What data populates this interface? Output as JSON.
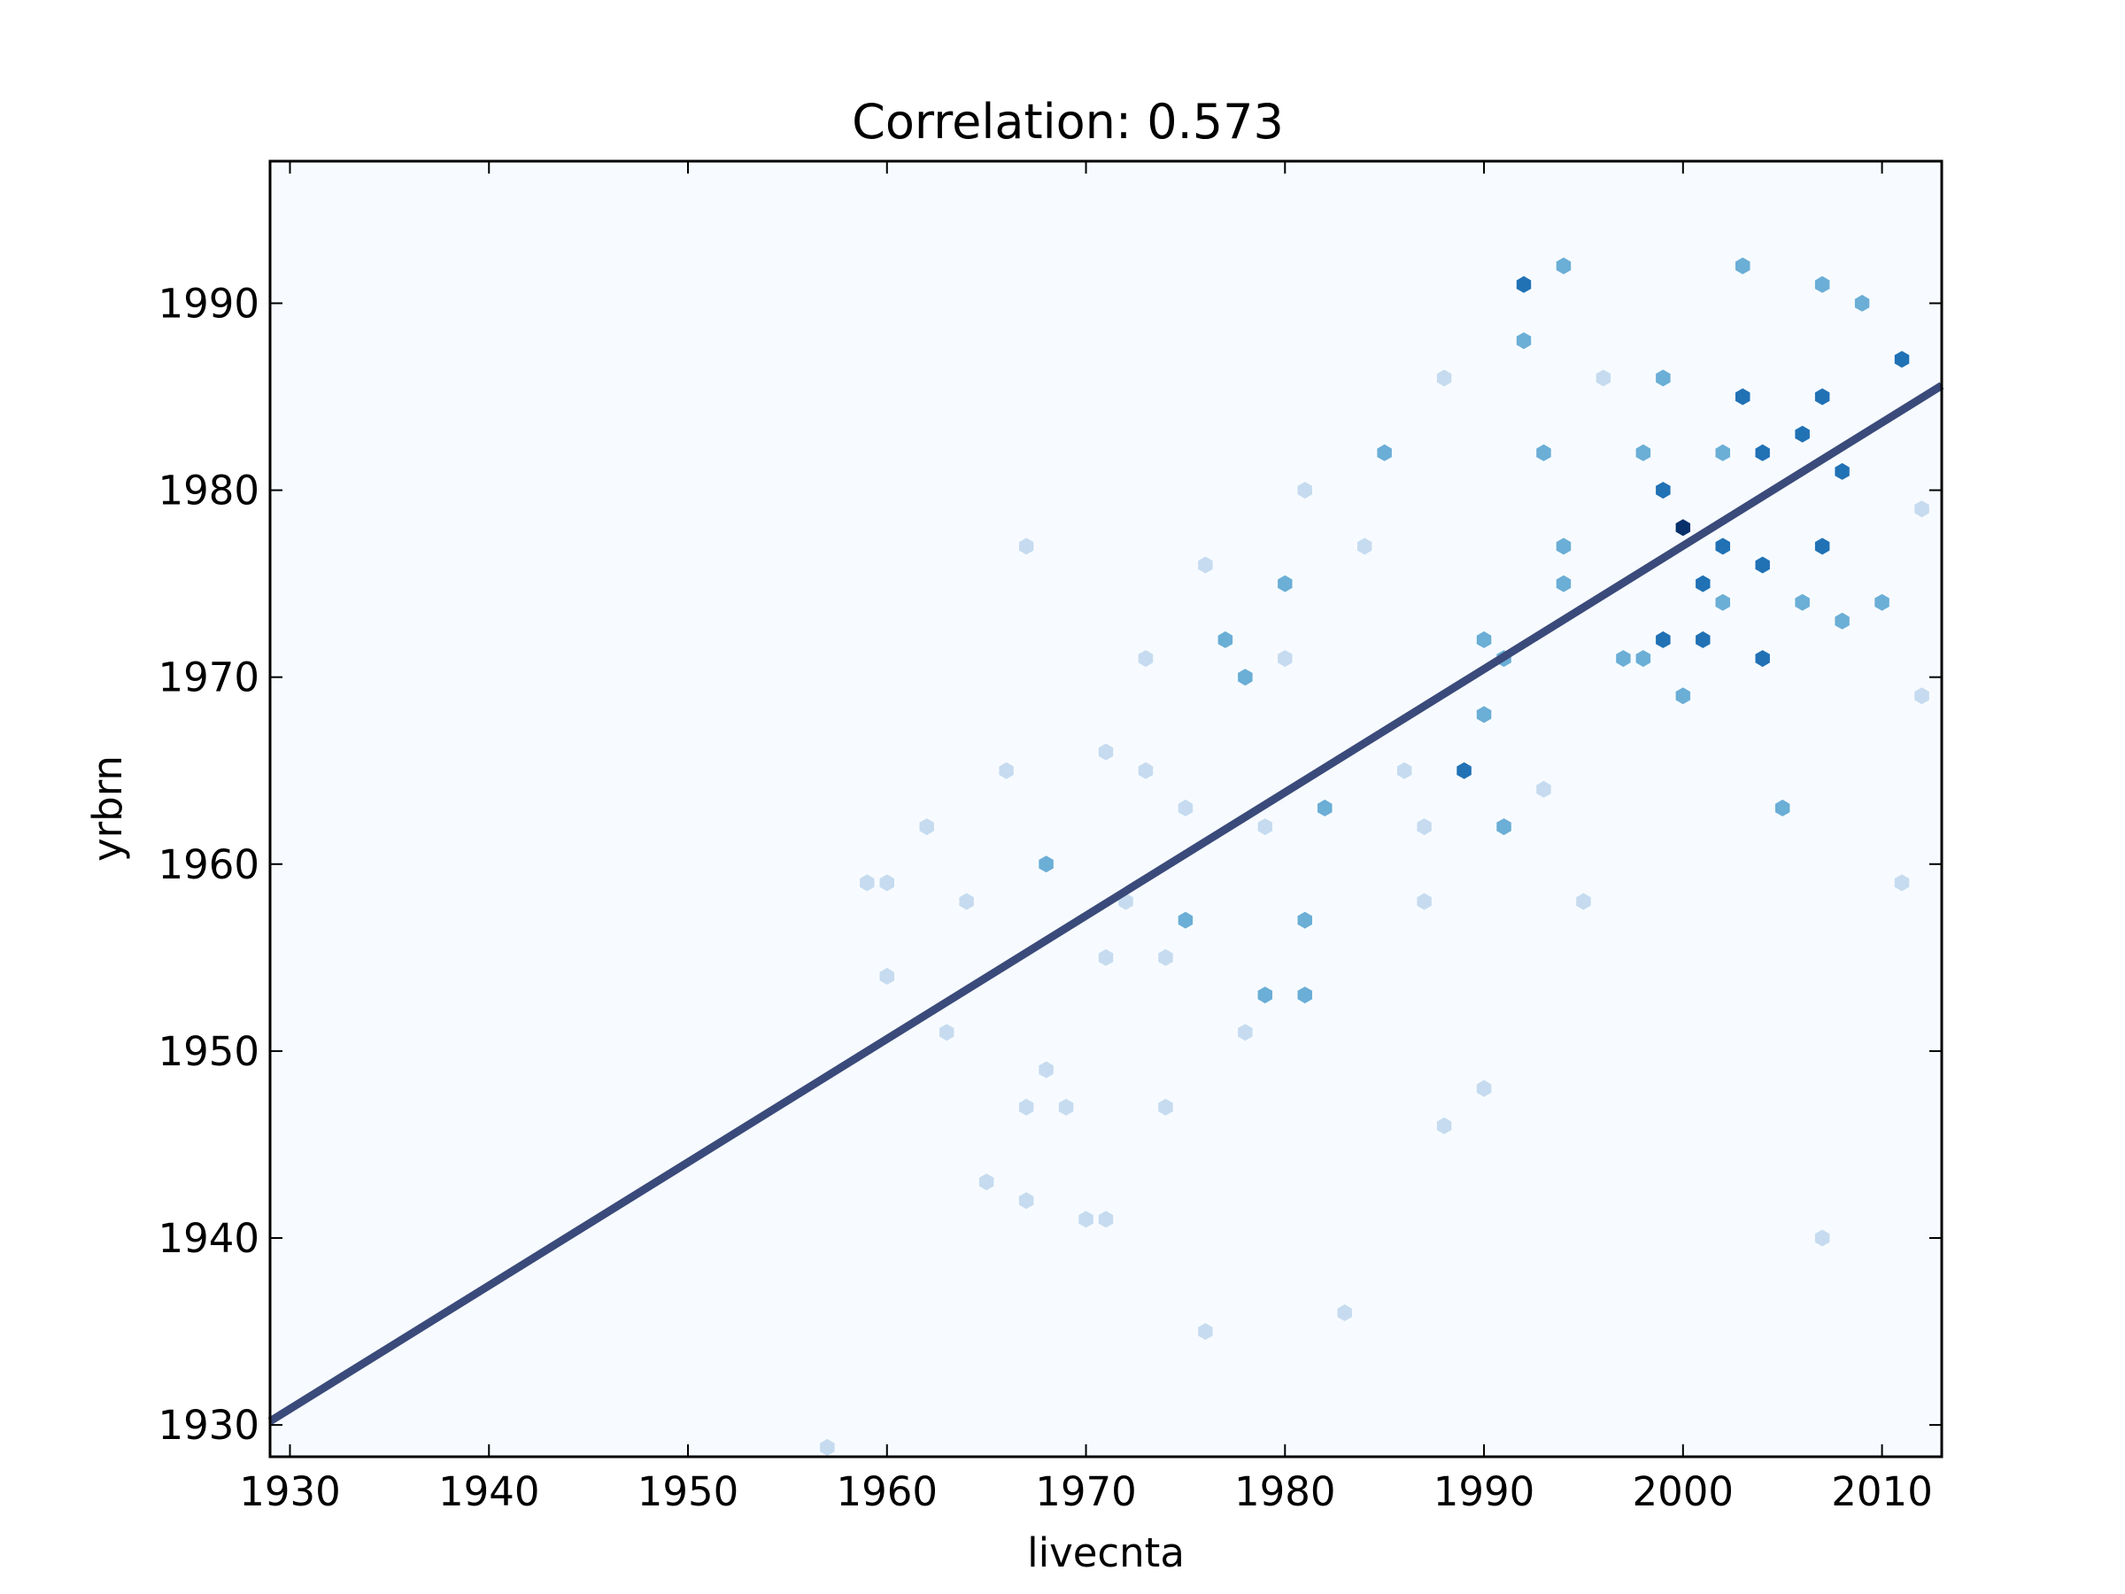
{
  "chart_data": {
    "type": "hexbin-scatter-with-regression",
    "title": "Correlation: 0.573",
    "xlabel": "livecnta",
    "ylabel": "yrbrn",
    "xlim": [
      1929,
      2013
    ],
    "ylim": [
      1928.3,
      1997.6
    ],
    "xticks": [
      1930,
      1940,
      1950,
      1960,
      1970,
      1980,
      1990,
      2000,
      2010
    ],
    "yticks": [
      1930,
      1940,
      1950,
      1960,
      1970,
      1980,
      1990
    ],
    "grid": false,
    "colormap": [
      "#f7fbff",
      "#c6dbef",
      "#6baed6",
      "#2171b5",
      "#08306b"
    ],
    "regression_line": {
      "x": [
        1929,
        2013
      ],
      "y": [
        1930.2,
        1985.6
      ],
      "color": "#3a4a7a"
    },
    "bins": [
      [
        1957,
        1928.8,
        1
      ],
      [
        1959,
        1959,
        1
      ],
      [
        1960,
        1959,
        1
      ],
      [
        1960,
        1954,
        1
      ],
      [
        1962,
        1962,
        1
      ],
      [
        1963,
        1951,
        1
      ],
      [
        1964,
        1958,
        1
      ],
      [
        1965,
        1943,
        1
      ],
      [
        1966,
        1965,
        1
      ],
      [
        1967,
        1977,
        1
      ],
      [
        1967,
        1947,
        1
      ],
      [
        1967,
        1942,
        1
      ],
      [
        1968,
        1949,
        1
      ],
      [
        1968,
        1960,
        2
      ],
      [
        1969,
        1947,
        1
      ],
      [
        1970,
        1941,
        1
      ],
      [
        1971,
        1941,
        1
      ],
      [
        1971,
        1955,
        1
      ],
      [
        1971,
        1966,
        1
      ],
      [
        1972,
        1958,
        1
      ],
      [
        1973,
        1965,
        1
      ],
      [
        1973,
        1971,
        1
      ],
      [
        1974,
        1947,
        1
      ],
      [
        1974,
        1955,
        1
      ],
      [
        1975,
        1957,
        2
      ],
      [
        1975,
        1963,
        1
      ],
      [
        1976,
        1976,
        1
      ],
      [
        1976,
        1935,
        1
      ],
      [
        1977,
        1972,
        2
      ],
      [
        1978,
        1970,
        2
      ],
      [
        1978,
        1951,
        1
      ],
      [
        1979,
        1953,
        2
      ],
      [
        1979,
        1962,
        1
      ],
      [
        1980,
        1975,
        2
      ],
      [
        1980,
        1971,
        1
      ],
      [
        1981,
        1953,
        2
      ],
      [
        1981,
        1957,
        2
      ],
      [
        1981,
        1980,
        1
      ],
      [
        1982,
        1963,
        2
      ],
      [
        1983,
        1936,
        1
      ],
      [
        1984,
        1977,
        1
      ],
      [
        1985,
        1982,
        2
      ],
      [
        1986,
        1965,
        1
      ],
      [
        1987,
        1958,
        1
      ],
      [
        1987,
        1962,
        1
      ],
      [
        1988,
        1986,
        1
      ],
      [
        1988,
        1946,
        1
      ],
      [
        1989,
        1965,
        3
      ],
      [
        1990,
        1968,
        2
      ],
      [
        1990,
        1972,
        2
      ],
      [
        1990,
        1948,
        1
      ],
      [
        1991,
        1962,
        2
      ],
      [
        1991,
        1971,
        2
      ],
      [
        1992,
        1991,
        3
      ],
      [
        1992,
        1988,
        2
      ],
      [
        1993,
        1982,
        2
      ],
      [
        1993,
        1964,
        1
      ],
      [
        1994,
        1992,
        2
      ],
      [
        1994,
        1977,
        2
      ],
      [
        1994,
        1975,
        2
      ],
      [
        1995,
        1958,
        1
      ],
      [
        1996,
        1986,
        1
      ],
      [
        1997,
        1971,
        2
      ],
      [
        1998,
        1971,
        2
      ],
      [
        1998,
        1982,
        2
      ],
      [
        1999,
        1980,
        3
      ],
      [
        1999,
        1972,
        3
      ],
      [
        1999,
        1986,
        2
      ],
      [
        2000,
        1978,
        4
      ],
      [
        2000,
        1969,
        2
      ],
      [
        2001,
        1975,
        3
      ],
      [
        2001,
        1972,
        3
      ],
      [
        2002,
        1977,
        3
      ],
      [
        2002,
        1982,
        2
      ],
      [
        2002,
        1974,
        2
      ],
      [
        2003,
        1985,
        3
      ],
      [
        2003,
        1992,
        2
      ],
      [
        2004,
        1982,
        3
      ],
      [
        2004,
        1971,
        3
      ],
      [
        2004,
        1976,
        3
      ],
      [
        2005,
        1963,
        2
      ],
      [
        2006,
        1983,
        3
      ],
      [
        2006,
        1974,
        2
      ],
      [
        2007,
        1985,
        3
      ],
      [
        2007,
        1977,
        3
      ],
      [
        2007,
        1991,
        2
      ],
      [
        2008,
        1981,
        3
      ],
      [
        2008,
        1973,
        2
      ],
      [
        2009,
        1990,
        2
      ],
      [
        2010,
        1974,
        2
      ],
      [
        2011,
        1987,
        3
      ],
      [
        2012,
        1969,
        1
      ],
      [
        2012,
        1979,
        1
      ],
      [
        2011,
        1959,
        1
      ],
      [
        2007,
        1940,
        1
      ]
    ]
  }
}
